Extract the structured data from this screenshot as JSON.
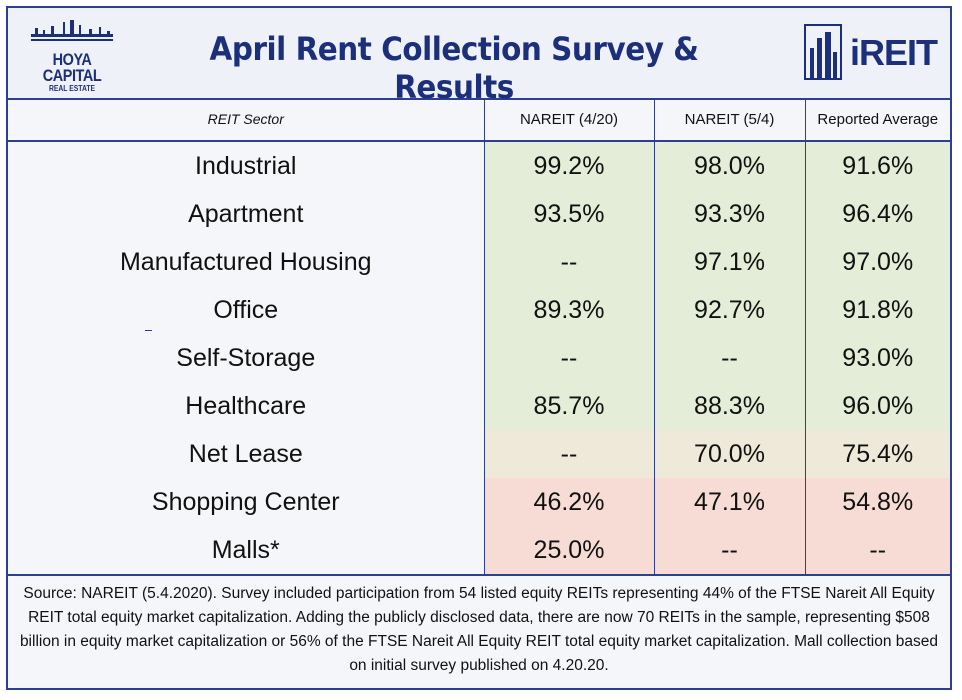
{
  "header": {
    "title": "April Rent Collection Survey & Results",
    "left_logo": {
      "name": "HOYA CAPITAL",
      "sub": "REAL ESTATE"
    },
    "right_logo": {
      "text": "iREIT"
    }
  },
  "colors": {
    "brand_blue": "#2c3f93",
    "high_green": "#e3edd8",
    "mid_neutral": "#eee9d8",
    "low_pink": "#f6dcd5"
  },
  "chart_data": {
    "type": "table",
    "title": "April Rent Collection Survey & Results",
    "columns": [
      "REIT Sector",
      "NAREIT (4/20)",
      "NAREIT (5/4)",
      "Reported Average"
    ],
    "rows": [
      {
        "sector": "Industrial",
        "values": [
          "99.2%",
          "98.0%",
          "91.6%"
        ]
      },
      {
        "sector": "Apartment",
        "values": [
          "93.5%",
          "93.3%",
          "96.4%"
        ]
      },
      {
        "sector": "Manufactured Housing",
        "values": [
          "--",
          "97.1%",
          "97.0%"
        ]
      },
      {
        "sector": "Office",
        "values": [
          "89.3%",
          "92.7%",
          "91.8%"
        ]
      },
      {
        "sector": "Self-Storage",
        "values": [
          "--",
          "--",
          "93.0%"
        ]
      },
      {
        "sector": "Healthcare",
        "values": [
          "85.7%",
          "88.3%",
          "96.0%"
        ]
      },
      {
        "sector": "Net Lease",
        "values": [
          "--",
          "70.0%",
          "75.4%"
        ]
      },
      {
        "sector": "Shopping Center",
        "values": [
          "46.2%",
          "47.1%",
          "54.8%"
        ]
      },
      {
        "sector": "Malls*",
        "values": [
          "25.0%",
          "--",
          "--"
        ]
      }
    ]
  },
  "footer": {
    "source": "Source: NAREIT (5.4.2020). Survey included participation from 54 listed equity REITs representing 44% of the FTSE Nareit All Equity REIT total equity market capitalization. Adding the publicly disclosed data, there are now 70 REITs in the sample, representing $508 billion in equity market capitalization or 56% of the FTSE Nareit All Equity REIT total equity market capitalization. Mall collection based on initial survey published on 4.20.20."
  }
}
